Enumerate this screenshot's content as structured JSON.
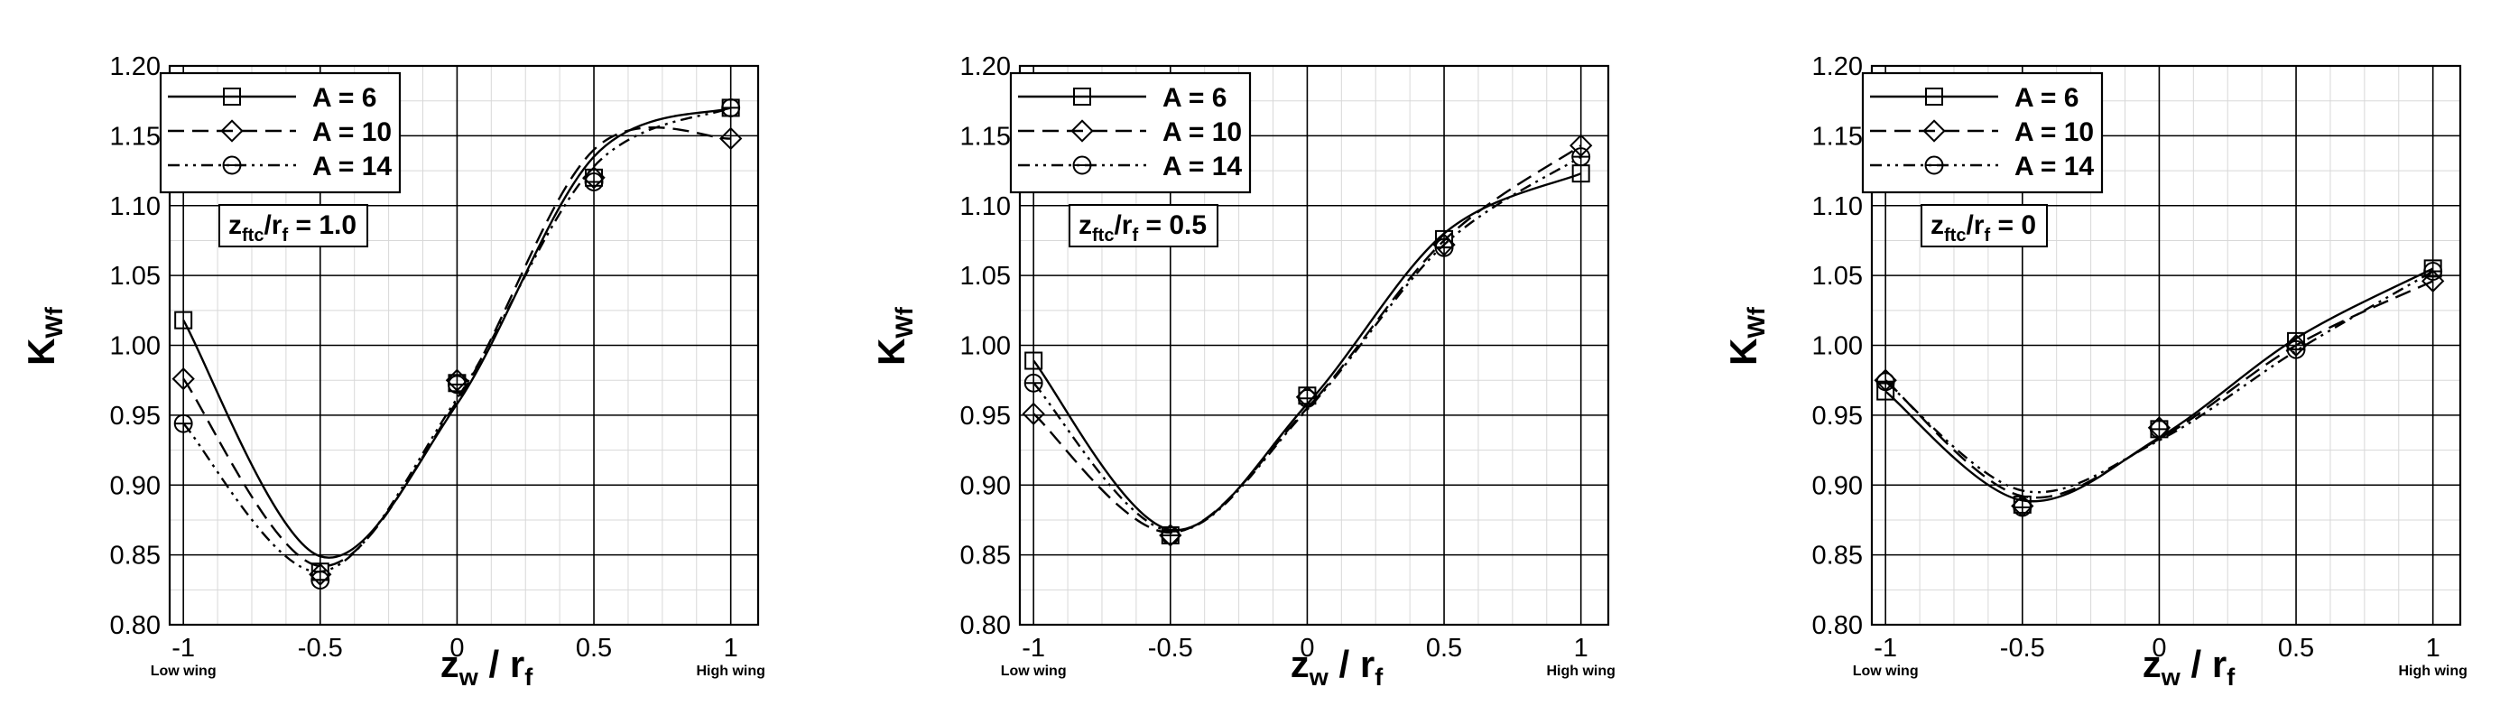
{
  "chart_data": [
    {
      "type": "line",
      "x_values": [
        -1,
        -0.5,
        0,
        0.5,
        1
      ],
      "xlabel": {
        "main": "z",
        "main_sub": "w",
        "sep": " / ",
        "den": "r",
        "den_sub": "f"
      },
      "ylabel": {
        "main": "K",
        "sub": "Wf"
      },
      "xlim": [
        -1.05,
        1.1
      ],
      "ylim": [
        0.8,
        1.2
      ],
      "x_ticks": [
        -1,
        -0.5,
        0,
        0.5,
        1
      ],
      "x_tick_labels": [
        "-1",
        "-0.5",
        "0",
        "0.5",
        "1"
      ],
      "y_ticks": [
        0.8,
        0.85,
        0.9,
        0.95,
        1.0,
        1.05,
        1.1,
        1.15,
        1.2
      ],
      "y_tick_labels": [
        "0.80",
        "0.85",
        "0.90",
        "0.95",
        "1.00",
        "1.05",
        "1.10",
        "1.15",
        "1.20"
      ],
      "x_extra_labels": {
        "left": "Low wing",
        "right": "High wing"
      },
      "grid": true,
      "legend_position": "top-left",
      "annotation": {
        "main": "z",
        "main_sub": "ftc",
        "sep": "/r",
        "den_sub": "f",
        "value": " = 1.0"
      },
      "series": [
        {
          "name": "A = 6",
          "marker": "square",
          "dash": "solid",
          "points": [
            1.018,
            0.838,
            0.973,
            1.12,
            1.17
          ],
          "curve": [
            1.018,
            0.849,
            0.958,
            1.135,
            1.17
          ]
        },
        {
          "name": "A = 10",
          "marker": "diamond",
          "dash": "dashed",
          "points": [
            0.976,
            0.836,
            0.975,
            1.12,
            1.148
          ],
          "curve": [
            0.976,
            0.842,
            0.96,
            1.14,
            1.148
          ]
        },
        {
          "name": "A = 14",
          "marker": "circle",
          "dash": "dashdotdot",
          "points": [
            0.944,
            0.832,
            0.972,
            1.117,
            1.17
          ],
          "curve": [
            0.944,
            0.838,
            0.962,
            1.128,
            1.17
          ]
        }
      ]
    },
    {
      "type": "line",
      "x_values": [
        -1,
        -0.5,
        0,
        0.5,
        1
      ],
      "xlabel": {
        "main": "z",
        "main_sub": "w",
        "sep": " / ",
        "den": "r",
        "den_sub": "f"
      },
      "ylabel": {
        "main": "K",
        "sub": "Wf"
      },
      "xlim": [
        -1.05,
        1.1
      ],
      "ylim": [
        0.8,
        1.2
      ],
      "x_ticks": [
        -1,
        -0.5,
        0,
        0.5,
        1
      ],
      "x_tick_labels": [
        "-1",
        "-0.5",
        "0",
        "0.5",
        "1"
      ],
      "y_ticks": [
        0.8,
        0.85,
        0.9,
        0.95,
        1.0,
        1.05,
        1.1,
        1.15,
        1.2
      ],
      "y_tick_labels": [
        "0.80",
        "0.85",
        "0.90",
        "0.95",
        "1.00",
        "1.05",
        "1.10",
        "1.15",
        "1.20"
      ],
      "x_extra_labels": {
        "left": "Low wing",
        "right": "High wing"
      },
      "grid": true,
      "legend_position": "top-left",
      "annotation": {
        "main": "z",
        "main_sub": "ftc",
        "sep": "/r",
        "den_sub": "f",
        "value": " = 0.5"
      },
      "series": [
        {
          "name": "A = 6",
          "marker": "square",
          "dash": "solid",
          "points": [
            0.989,
            0.864,
            0.964,
            1.076,
            1.123
          ],
          "curve": [
            0.989,
            0.868,
            0.958,
            1.08,
            1.123
          ]
        },
        {
          "name": "A = 10",
          "marker": "diamond",
          "dash": "dashed",
          "points": [
            0.951,
            0.864,
            0.963,
            1.072,
            1.143
          ],
          "curve": [
            0.951,
            0.866,
            0.955,
            1.075,
            1.143
          ]
        },
        {
          "name": "A = 14",
          "marker": "circle",
          "dash": "dashdotdot",
          "points": [
            0.973,
            0.864,
            0.962,
            1.07,
            1.135
          ],
          "curve": [
            0.973,
            0.867,
            0.954,
            1.072,
            1.135
          ]
        }
      ]
    },
    {
      "type": "line",
      "x_values": [
        -1,
        -0.5,
        0,
        0.5,
        1
      ],
      "xlabel": {
        "main": "z",
        "main_sub": "w",
        "sep": " / ",
        "den": "r",
        "den_sub": "f"
      },
      "ylabel": {
        "main": "K",
        "sub": "Wf"
      },
      "xlim": [
        -1.05,
        1.1
      ],
      "ylim": [
        0.8,
        1.2
      ],
      "x_ticks": [
        -1,
        -0.5,
        0,
        0.5,
        1
      ],
      "x_tick_labels": [
        "-1",
        "-0.5",
        "0",
        "0.5",
        "1"
      ],
      "y_ticks": [
        0.8,
        0.85,
        0.9,
        0.95,
        1.0,
        1.05,
        1.1,
        1.15,
        1.2
      ],
      "y_tick_labels": [
        "0.80",
        "0.85",
        "0.90",
        "0.95",
        "1.00",
        "1.05",
        "1.10",
        "1.15",
        "1.20"
      ],
      "x_extra_labels": {
        "left": "Low wing",
        "right": "High wing"
      },
      "grid": true,
      "legend_position": "top-left",
      "annotation": {
        "main": "z",
        "main_sub": "ftc",
        "sep": "/r",
        "den_sub": "f",
        "value": " = 0"
      },
      "series": [
        {
          "name": "A = 6",
          "marker": "square",
          "dash": "solid",
          "points": [
            0.967,
            0.886,
            0.94,
            1.003,
            1.055
          ],
          "curve": [
            0.967,
            0.889,
            0.934,
            1.005,
            1.055
          ]
        },
        {
          "name": "A = 10",
          "marker": "diamond",
          "dash": "dashed",
          "points": [
            0.975,
            0.885,
            0.941,
            1.0,
            1.046
          ],
          "curve": [
            0.975,
            0.892,
            0.933,
            1.0,
            1.046
          ]
        },
        {
          "name": "A = 14",
          "marker": "circle",
          "dash": "dashdotdot",
          "points": [
            0.974,
            0.884,
            0.94,
            0.997,
            1.053
          ],
          "curve": [
            0.974,
            0.896,
            0.932,
            0.996,
            1.053
          ]
        }
      ]
    }
  ]
}
